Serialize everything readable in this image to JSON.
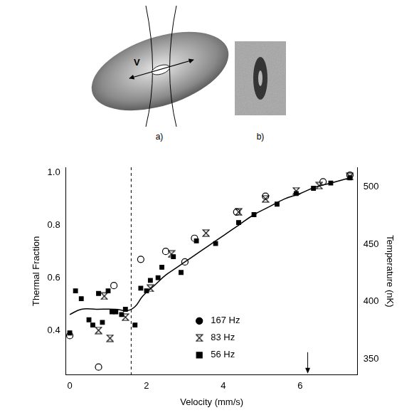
{
  "figure": {
    "panel_labels": [
      "a)",
      "b)"
    ],
    "arrow_label": "V"
  },
  "chart_data": {
    "type": "scatter",
    "x_label": "Velocity (mm/s)",
    "y_label": "Thermal Fraction",
    "y2_label": "Temperature (nK)",
    "xlim": [
      -0.1,
      7.5
    ],
    "xticks": [
      0,
      2,
      4,
      6
    ],
    "ylim": [
      0.23,
      1.02
    ],
    "yticks": [
      0.4,
      0.6,
      0.8,
      {
        "value": 1,
        "label": "1.0"
      }
    ],
    "y2lim": [
      336,
      517
    ],
    "y2ticks": [
      350,
      400,
      450,
      500
    ],
    "grid": false,
    "legend": "bottom",
    "vlines": [
      1.6
    ],
    "arrows_x": [
      6.2
    ],
    "series": [
      {
        "name": "167 Hz",
        "marker": "circle",
        "color": "#000000",
        "x": [
          0,
          0.75,
          1.15,
          1.85,
          2.5,
          3.0,
          3.25,
          4.35,
          5.1,
          6.6,
          7.3
        ],
        "values": [
          0.38,
          0.26,
          0.57,
          0.67,
          0.7,
          0.66,
          0.75,
          0.85,
          0.91,
          0.965,
          0.99
        ]
      },
      {
        "name": "83 Hz",
        "marker": "hourglass",
        "color": "#000000",
        "x": [
          0.75,
          0.9,
          1.05,
          1.45,
          2.1,
          2.65,
          3.55,
          4.4,
          5.1,
          5.9,
          6.5,
          7.3
        ],
        "values": [
          0.4,
          0.53,
          0.37,
          0.45,
          0.56,
          0.69,
          0.77,
          0.85,
          0.9,
          0.93,
          0.95,
          0.985
        ]
      },
      {
        "name": "56 Hz",
        "marker": "square",
        "color": "#000000",
        "x": [
          0,
          0.15,
          0.3,
          0.5,
          0.6,
          0.75,
          0.85,
          1.0,
          1.1,
          1.2,
          1.35,
          1.45,
          1.7,
          1.85,
          2.0,
          2.1,
          2.3,
          2.4,
          2.7,
          2.9,
          3.3,
          3.8,
          4.4,
          4.8,
          5.4,
          5.9,
          6.35,
          6.8,
          7.3
        ],
        "values": [
          0.39,
          0.55,
          0.52,
          0.44,
          0.42,
          0.54,
          0.43,
          0.55,
          0.47,
          0.47,
          0.46,
          0.48,
          0.42,
          0.56,
          0.55,
          0.59,
          0.6,
          0.64,
          0.68,
          0.62,
          0.74,
          0.73,
          0.81,
          0.84,
          0.88,
          0.92,
          0.94,
          0.96,
          0.98
        ]
      },
      {
        "type": "line",
        "line_style": "solid",
        "color": "#000000",
        "x": [
          0,
          0.3,
          0.7,
          1.2,
          1.5,
          1.7,
          1.9,
          2.2,
          2.5,
          2.8,
          3.2,
          3.6,
          4.0,
          4.4,
          4.8,
          5.2,
          5.6,
          6.0,
          6.4,
          6.8,
          7.3
        ],
        "values": [
          0.46,
          0.48,
          0.48,
          0.48,
          0.475,
          0.49,
          0.53,
          0.57,
          0.61,
          0.64,
          0.68,
          0.72,
          0.76,
          0.8,
          0.84,
          0.87,
          0.9,
          0.92,
          0.945,
          0.96,
          0.98
        ]
      }
    ]
  }
}
